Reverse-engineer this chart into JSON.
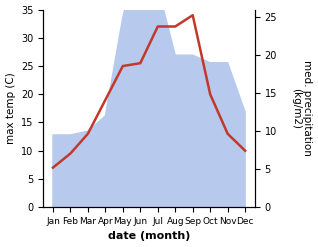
{
  "months": [
    "Jan",
    "Feb",
    "Mar",
    "Apr",
    "May",
    "Jun",
    "Jul",
    "Aug",
    "Sep",
    "Oct",
    "Nov",
    "Dec"
  ],
  "temp": [
    7,
    9.5,
    13,
    19,
    25,
    25.5,
    32,
    32,
    34,
    20,
    13,
    10
  ],
  "precip": [
    9.5,
    9.5,
    10,
    12,
    25,
    34,
    29,
    20,
    20,
    19,
    19,
    12.5
  ],
  "temp_color": "#c0392b",
  "precip_color": "#b8c9ee",
  "ylabel_left": "max temp (C)",
  "ylabel_right": "med. precipitation\n(kg/m2)",
  "xlabel": "date (month)",
  "ylim_left": [
    0,
    35
  ],
  "ylim_right": [
    0,
    26
  ],
  "yticks_left": [
    0,
    5,
    10,
    15,
    20,
    25,
    30,
    35
  ],
  "yticks_right": [
    0,
    5,
    10,
    15,
    20,
    25
  ],
  "bg_color": "#ffffff",
  "temp_linewidth": 1.8,
  "xlabel_fontsize": 8,
  "ylabel_fontsize": 7.5
}
